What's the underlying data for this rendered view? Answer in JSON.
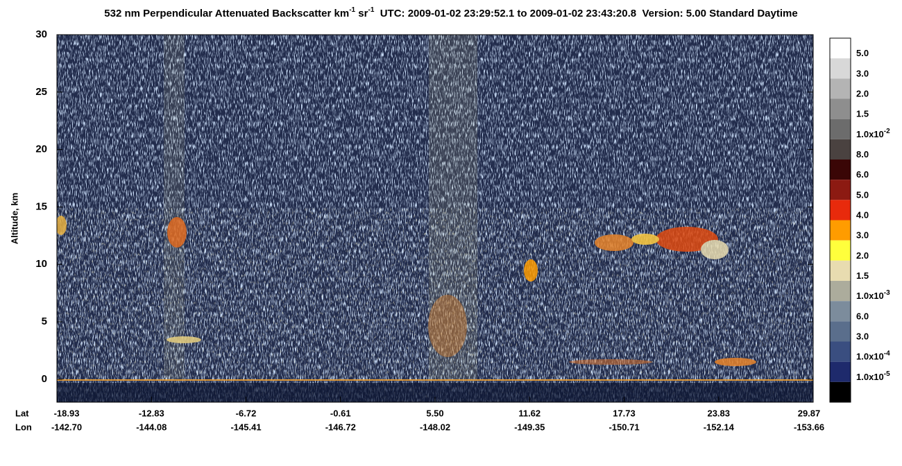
{
  "chart_data": {
    "type": "curtain",
    "title_parts": [
      "532 nm Perpendicular Attenuated Backscatter km",
      "-1",
      " sr",
      "-1",
      "  UTC: 2009-01-02 23:29:52.1 to 2009-01-02 23:43:20.8  Version: 5.00 Standard Daytime"
    ],
    "ylabel": "Altitude, km",
    "ylim": [
      -2,
      30
    ],
    "yticks": [
      0,
      5,
      10,
      15,
      20,
      25,
      30
    ],
    "x_row_labels": [
      "Lat",
      "Lon"
    ],
    "x_tick_lat": [
      "-18.93",
      "-12.83",
      "-6.72",
      "-0.61",
      "5.50",
      "11.62",
      "17.73",
      "23.83",
      "29.87"
    ],
    "x_tick_lon": [
      "-142.70",
      "-144.08",
      "-145.41",
      "-146.72",
      "-148.02",
      "-149.35",
      "-150.71",
      "-152.14",
      "-153.66"
    ],
    "colorbar": {
      "colors": [
        "#ffffff",
        "#d8d8d8",
        "#b4b4b4",
        "#8e8e8e",
        "#6c6c6c",
        "#4a4240",
        "#3a0606",
        "#8c1a12",
        "#e82a0c",
        "#ff9c00",
        "#ffff3c",
        "#e8dcb0",
        "#acac9c",
        "#7c8c9c",
        "#5a6e8c",
        "#3a4e80",
        "#1e2a6c",
        "#000000"
      ],
      "labels": [
        {
          "text": "5.0"
        },
        {
          "text": "3.0"
        },
        {
          "text": "2.0"
        },
        {
          "text": "1.5"
        },
        {
          "text": "1.0x10",
          "sup": "-2"
        },
        {
          "text": "8.0"
        },
        {
          "text": "6.0"
        },
        {
          "text": "5.0"
        },
        {
          "text": "4.0"
        },
        {
          "text": "3.0"
        },
        {
          "text": "2.0"
        },
        {
          "text": "1.5"
        },
        {
          "text": "1.0x10",
          "sup": "-3"
        },
        {
          "text": "6.0"
        },
        {
          "text": "3.0"
        },
        {
          "text": "1.0x10",
          "sup": "-4"
        },
        {
          "text": "1.0x10",
          "sup": "-5"
        }
      ]
    }
  }
}
